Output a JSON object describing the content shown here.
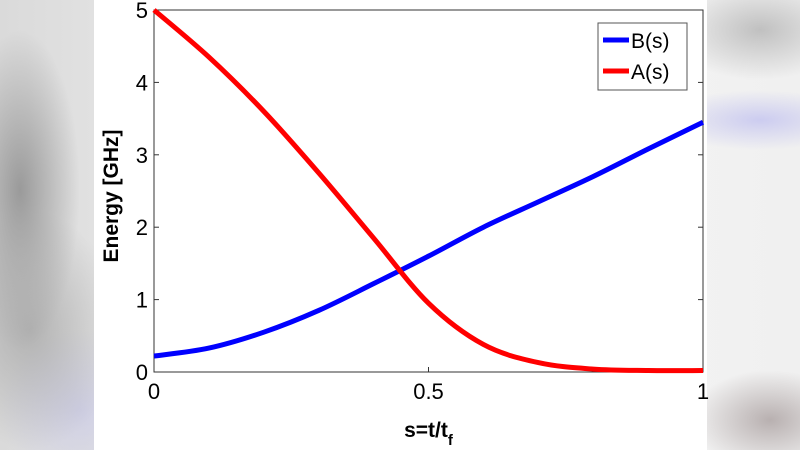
{
  "chart_data": {
    "type": "line",
    "title": "",
    "xlabel": "s=t/t_f",
    "xlabel_main": "s=t/t",
    "xlabel_sub": "f",
    "ylabel": "Energy [GHz]",
    "xlim": [
      0,
      1
    ],
    "ylim": [
      0,
      5
    ],
    "xticks": [
      0,
      0.5,
      1
    ],
    "xtick_labels": [
      "0",
      "0.5",
      "1"
    ],
    "yticks": [
      0,
      1,
      2,
      3,
      4,
      5
    ],
    "ytick_labels": [
      "0",
      "1",
      "2",
      "3",
      "4",
      "5"
    ],
    "grid": false,
    "legend_position": "upper right",
    "x": [
      0,
      0.1,
      0.2,
      0.3,
      0.4,
      0.5,
      0.6,
      0.7,
      0.8,
      0.9,
      1.0
    ],
    "series": [
      {
        "name": "B(s)",
        "color": "#0000ff",
        "values": [
          0.22,
          0.33,
          0.55,
          0.85,
          1.22,
          1.6,
          2.0,
          2.35,
          2.7,
          3.08,
          3.45
        ]
      },
      {
        "name": "A(s)",
        "color": "#ff0000",
        "values": [
          5.0,
          4.35,
          3.6,
          2.75,
          1.85,
          0.95,
          0.38,
          0.13,
          0.04,
          0.02,
          0.02
        ]
      }
    ],
    "annotations": [
      {
        "type": "crossing",
        "x": 0.43,
        "y": 1.41
      }
    ]
  },
  "legend": {
    "items": [
      {
        "label": "B(s)",
        "color": "#0000ff"
      },
      {
        "label": "A(s)",
        "color": "#ff0000"
      }
    ]
  },
  "colors": {
    "axis": "#333333",
    "background": "#ffffff"
  }
}
